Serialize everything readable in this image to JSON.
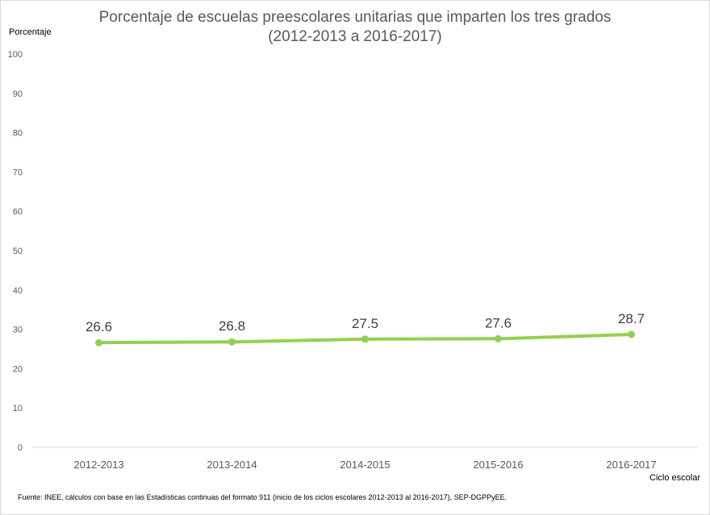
{
  "chart_data": {
    "type": "line",
    "title": [
      "Porcentaje de escuelas preescolares unitarias que imparten los tres grados",
      "(2012-2013 a 2016-2017)"
    ],
    "ylabel": "Porcentaje",
    "xlabel": "Ciclo escolar",
    "categories": [
      "2012-2013",
      "2013-2014",
      "2014-2015",
      "2015-2016",
      "2016-2017"
    ],
    "series": [
      {
        "values": [
          26.6,
          26.8,
          27.5,
          27.6,
          28.7
        ],
        "color": "#92d050"
      }
    ],
    "ylim": [
      0,
      100
    ],
    "yticks": [
      "0",
      "10",
      "20",
      "30",
      "40",
      "50",
      "60",
      "70",
      "80",
      "90",
      "100"
    ],
    "grid": false,
    "data_labels": true
  },
  "source": "Fuente: INEE, cálculos con base en las Estadísticas continuas del formato 911 (inicio de los ciclos escolares 2012-2013 al 2016-2017), SEP-DGPPyEE.",
  "colors": {
    "line": "#92d050",
    "axis": "#d9d9d9",
    "text": "#595959"
  }
}
